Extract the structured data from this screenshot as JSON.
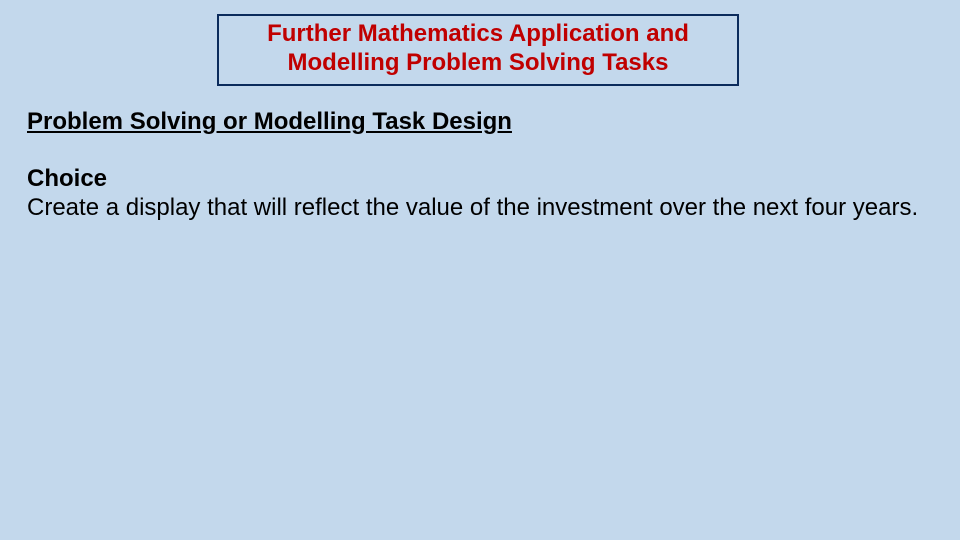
{
  "slide": {
    "background_color": "#c3d8ec",
    "title": {
      "line1": "Further Mathematics Application and",
      "line2": "Modelling Problem Solving Tasks",
      "color": "#c00000",
      "border_color": "#0b2b5c",
      "font_size": 24,
      "font_weight": "bold"
    },
    "subtitle": {
      "text": "Problem Solving or Modelling Task Design",
      "font_size": 24,
      "font_weight": "bold",
      "underline": true,
      "color": "#000000"
    },
    "body": {
      "choice_label": "Choice",
      "text": "Create a display that will reflect the value of the investment over the next four years.",
      "font_size": 24,
      "color": "#000000"
    }
  }
}
